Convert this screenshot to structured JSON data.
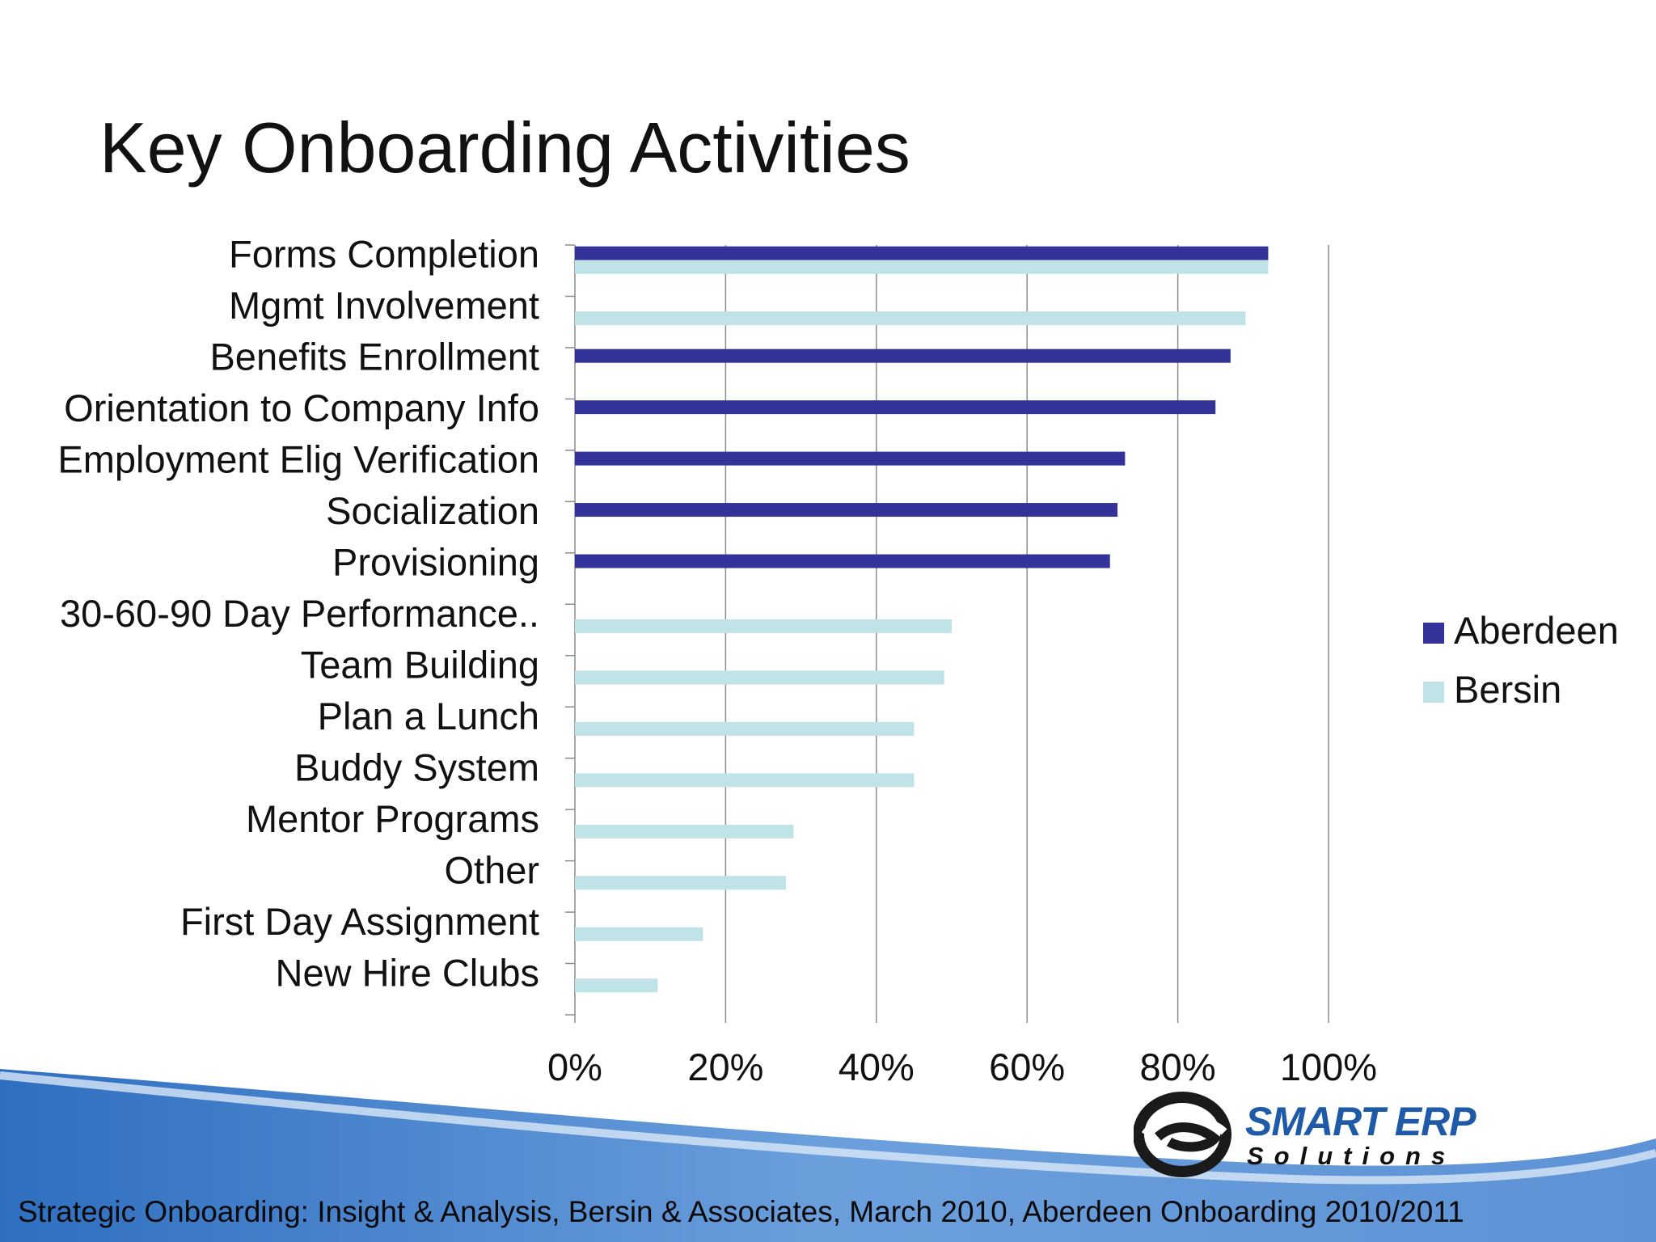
{
  "title": "Key Onboarding Activities",
  "source": "Strategic Onboarding:  Insight & Analysis, Bersin & Associates, March 2010, Aberdeen Onboarding 2010/2011",
  "logo": {
    "name": "SMART ERP",
    "tagline": "Solutions"
  },
  "colors": {
    "aberdeen": "#333399",
    "bersin": "#bfe3e6",
    "grid": "#8c8c8c",
    "footer_blue": "#4f86cc"
  },
  "chart_data": {
    "type": "bar",
    "orientation": "horizontal",
    "categories": [
      "Forms Completion",
      "Mgmt Involvement",
      "Benefits Enrollment",
      "Orientation to Company Info",
      "Employment Elig Verification",
      "Socialization",
      "Provisioning",
      "30-60-90 Day Performance..",
      "Team Building",
      "Plan a Lunch",
      "Buddy System",
      "Mentor Programs",
      "Other",
      "First Day Assignment",
      "New Hire Clubs"
    ],
    "series": [
      {
        "name": "Aberdeen",
        "values": [
          0.92,
          null,
          0.87,
          0.85,
          0.73,
          0.72,
          0.71,
          null,
          null,
          null,
          null,
          null,
          null,
          null,
          null
        ]
      },
      {
        "name": "Bersin",
        "values": [
          0.92,
          0.89,
          null,
          null,
          null,
          null,
          null,
          0.5,
          0.49,
          0.45,
          0.45,
          0.29,
          0.28,
          0.17,
          0.11
        ]
      }
    ],
    "xlim": [
      0,
      1
    ],
    "xticks": [
      0,
      0.2,
      0.4,
      0.6,
      0.8,
      1.0
    ],
    "xtick_labels": [
      "0%",
      "20%",
      "40%",
      "60%",
      "80%",
      "100%"
    ],
    "grid": true,
    "legend": "right"
  }
}
